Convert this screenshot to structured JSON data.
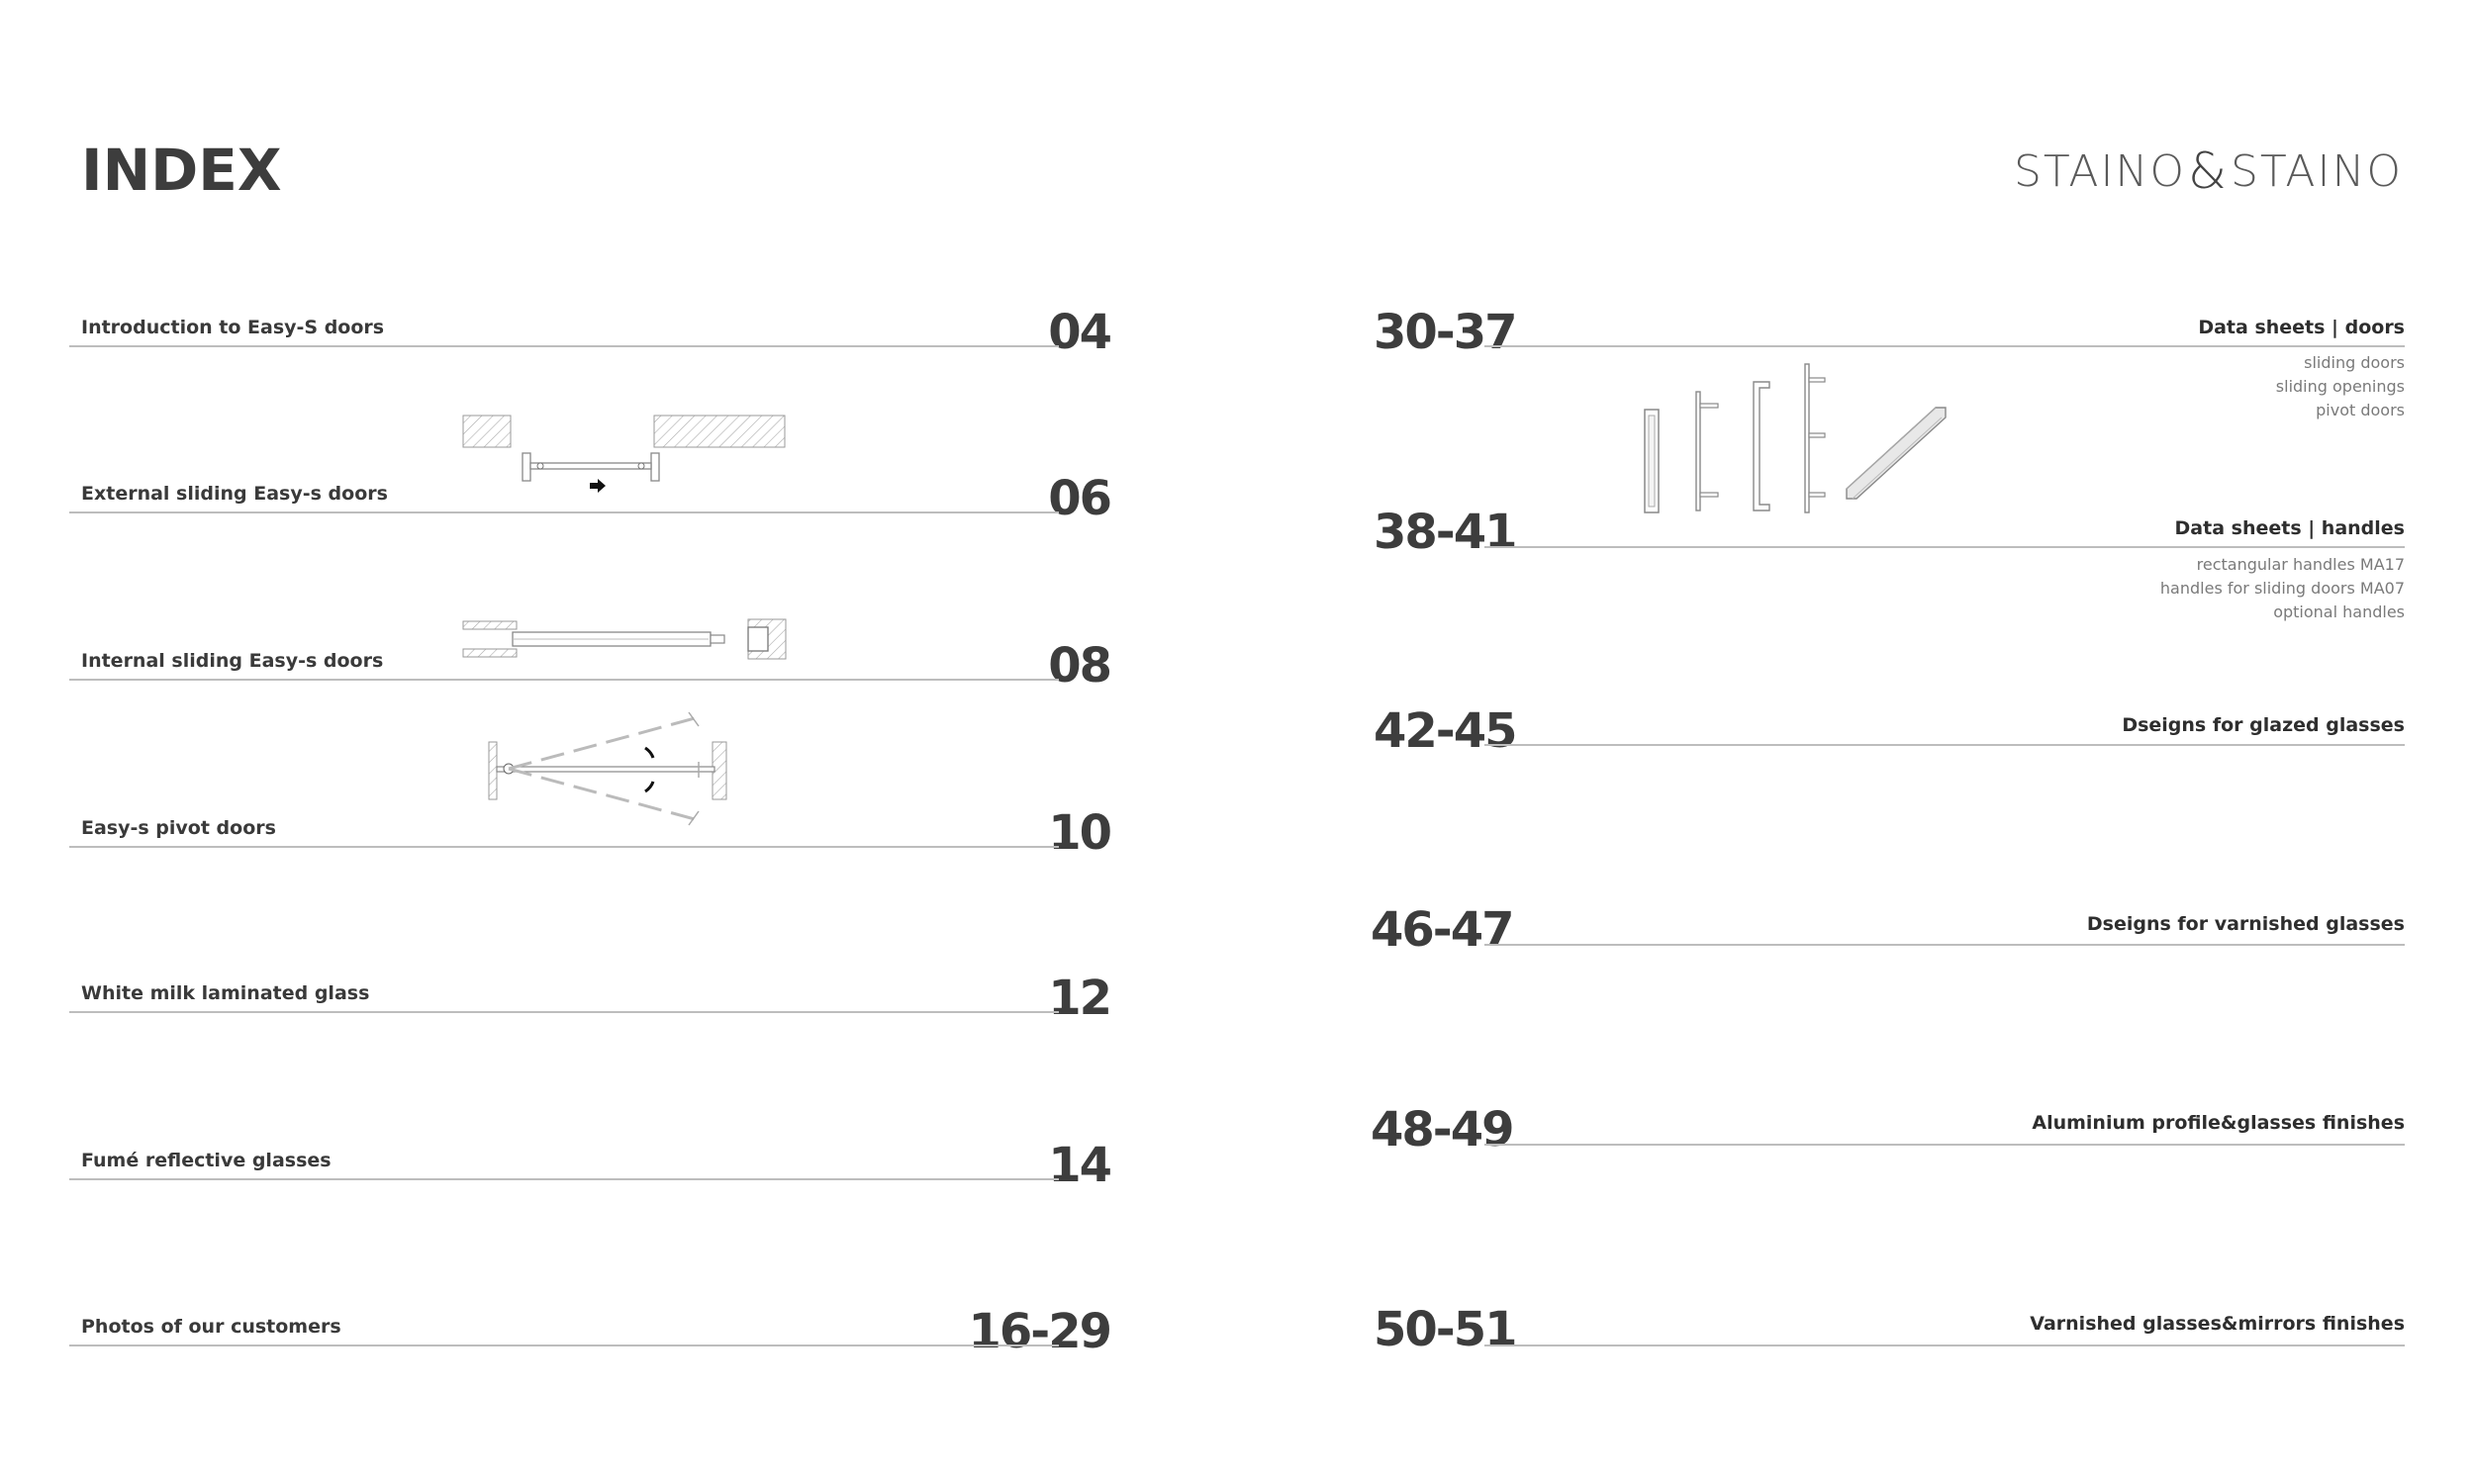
{
  "header": {
    "title": "INDEX",
    "logo_left": "STAINO",
    "logo_amp": "&",
    "logo_right": "STAINO"
  },
  "left_items": [
    {
      "label": "Introduction to Easy-S doors",
      "page": "04"
    },
    {
      "label": "External sliding Easy-s doors",
      "page": "06"
    },
    {
      "label": "Internal sliding Easy-s doors",
      "page": "08"
    },
    {
      "label": "Easy-s pivot doors",
      "page": "10"
    },
    {
      "label": "White milk laminated glass",
      "page": "12"
    },
    {
      "label": "Fumé reflective glasses",
      "page": "14"
    },
    {
      "label": "Photos of our customers",
      "page": "16-29"
    }
  ],
  "right_items": [
    {
      "label": "Data sheets | doors",
      "page": "30-37",
      "subs": [
        "sliding doors",
        "sliding openings",
        "pivot doors"
      ]
    },
    {
      "label": "Data sheets | handles",
      "page": "38-41",
      "subs": [
        "rectangular handles MA17",
        "handles for sliding doors MA07",
        "optional handles"
      ]
    },
    {
      "label": "Dseigns for glazed glasses",
      "page": "42-45"
    },
    {
      "label": "Dseigns for varnished glasses",
      "page": "46-47"
    },
    {
      "label": "Aluminium profile&glasses finishes",
      "page": "48-49"
    },
    {
      "label": "Varnished glasses&mirrors finishes",
      "page": "50-51"
    }
  ],
  "icons": {
    "external_sliding": "external-sliding-door-drawing-icon",
    "internal_sliding": "internal-sliding-door-drawing-icon",
    "pivot": "pivot-door-drawing-icon",
    "handles": "handles-drawing-icon"
  }
}
